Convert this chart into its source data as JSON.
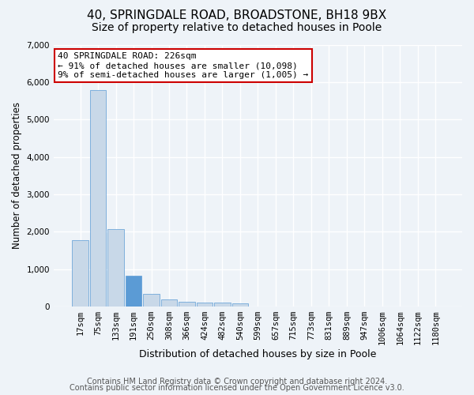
{
  "title1": "40, SPRINGDALE ROAD, BROADSTONE, BH18 9BX",
  "title2": "Size of property relative to detached houses in Poole",
  "xlabel": "Distribution of detached houses by size in Poole",
  "ylabel": "Number of detached properties",
  "categories": [
    "17sqm",
    "75sqm",
    "133sqm",
    "191sqm",
    "250sqm",
    "308sqm",
    "366sqm",
    "424sqm",
    "482sqm",
    "540sqm",
    "599sqm",
    "657sqm",
    "715sqm",
    "773sqm",
    "831sqm",
    "889sqm",
    "947sqm",
    "1006sqm",
    "1064sqm",
    "1122sqm",
    "1180sqm"
  ],
  "values": [
    1780,
    5780,
    2060,
    820,
    340,
    185,
    115,
    105,
    95,
    75,
    0,
    0,
    0,
    0,
    0,
    0,
    0,
    0,
    0,
    0,
    0
  ],
  "highlight_index": 3,
  "bar_color": "#c8d8e8",
  "bar_edge_color": "#5b9bd5",
  "highlight_bar_color": "#5b9bd5",
  "annotation_text": "40 SPRINGDALE ROAD: 226sqm\n← 91% of detached houses are smaller (10,098)\n9% of semi-detached houses are larger (1,005) →",
  "annotation_box_color": "#ffffff",
  "annotation_box_edge_color": "#cc0000",
  "ylim": [
    0,
    7000
  ],
  "yticks": [
    0,
    1000,
    2000,
    3000,
    4000,
    5000,
    6000,
    7000
  ],
  "footer1": "Contains HM Land Registry data © Crown copyright and database right 2024.",
  "footer2": "Contains public sector information licensed under the Open Government Licence v3.0.",
  "bg_color": "#eef3f8",
  "plot_bg_color": "#eef3f8",
  "grid_color": "#ffffff",
  "title1_fontsize": 11,
  "title2_fontsize": 10,
  "xlabel_fontsize": 9,
  "ylabel_fontsize": 8.5,
  "tick_fontsize": 7.5,
  "annotation_fontsize": 8,
  "footer_fontsize": 7
}
